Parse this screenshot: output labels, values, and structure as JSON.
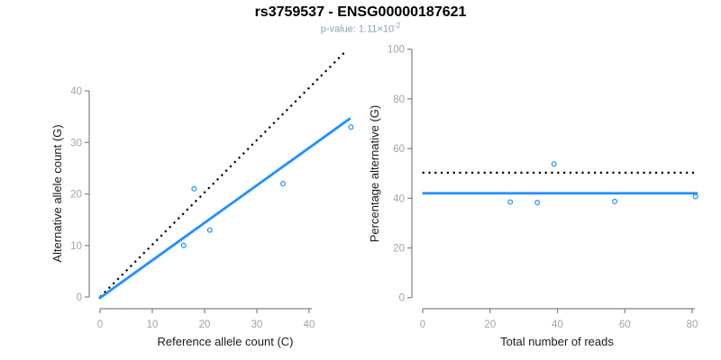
{
  "header": {
    "title": "rs3759537 - ENSG00000187621",
    "subtitle_prefix": "p-value: 1.11×10",
    "subtitle_exponent": "-2"
  },
  "colors": {
    "fit_line": "#1e90ff",
    "identity_line": "#000000",
    "point_stroke": "#1e90ff",
    "axis_line": "#808080",
    "tick_text": "#a3a3a3",
    "axis_title_text": "#1a1a1a",
    "title_text": "#000000",
    "subtitle_text": "#8e9cba"
  },
  "chart_data": [
    {
      "type": "scatter",
      "name": "allele-count-panel",
      "title": "rs3759537 - ENSG00000187621",
      "subtitle": "p-value: 1.11×10^-2",
      "xlabel": "Reference allele count (C)",
      "ylabel": "Alternative allele count (G)",
      "xticks": [
        0,
        10,
        20,
        30,
        40
      ],
      "yticks": [
        0,
        10,
        20,
        30,
        40
      ],
      "xlim": [
        0,
        48
      ],
      "ylim": [
        0,
        48
      ],
      "grid": false,
      "points": [
        [
          16,
          10
        ],
        [
          18,
          21
        ],
        [
          21,
          13
        ],
        [
          35,
          22
        ],
        [
          48,
          33
        ]
      ],
      "lines": [
        {
          "name": "identity-line",
          "style": "dotted",
          "color": "#000000",
          "x1": 0,
          "y1": 0,
          "x2": 47.2,
          "y2": 47.9
        },
        {
          "name": "regression-line",
          "style": "solid",
          "color": "#1e90ff",
          "x1": -0.2,
          "y1": -0.3,
          "x2": 47.9,
          "y2": 34.7
        }
      ]
    },
    {
      "type": "scatter",
      "name": "percentage-panel",
      "xlabel": "Total number of reads",
      "ylabel": "Percentage alternative (G)",
      "xticks": [
        0,
        20,
        40,
        60,
        80
      ],
      "yticks": [
        0,
        20,
        40,
        60,
        80,
        100
      ],
      "xlim": [
        0,
        81.6
      ],
      "ylim": [
        0,
        100
      ],
      "grid": false,
      "points": [
        [
          26,
          38.5
        ],
        [
          34,
          38.3
        ],
        [
          39,
          53.8
        ],
        [
          57,
          38.7
        ],
        [
          81,
          40.7
        ]
      ],
      "lines": [
        {
          "name": "expected-50pct-line",
          "style": "dotted",
          "color": "#000000",
          "x1": -0.1,
          "y1": 50.3,
          "x2": 80.6,
          "y2": 50.3
        },
        {
          "name": "observed-mean-line",
          "style": "solid",
          "color": "#1e90ff",
          "x1": -0.1,
          "y1": 42,
          "x2": 81.6,
          "y2": 42
        }
      ]
    }
  ]
}
